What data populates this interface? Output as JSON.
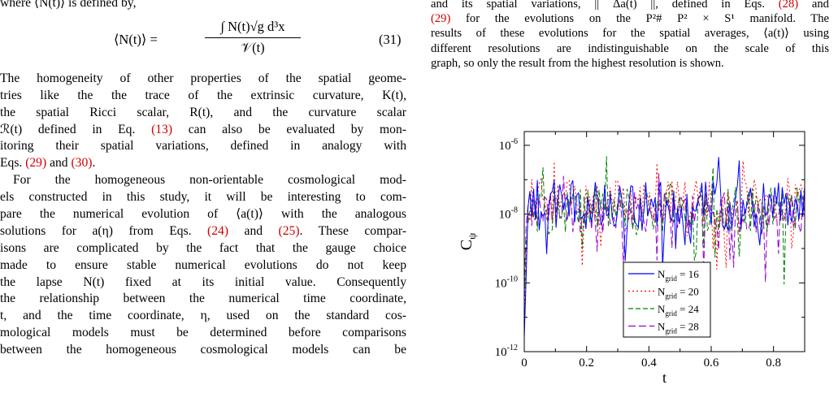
{
  "left": {
    "intro": "where ⟨N(t)⟩ is defined by,",
    "equation": {
      "lhs": "⟨N(t)⟩  =",
      "numerator": "∫ N(t)√g d³x",
      "denominator": "𝒱(t)",
      "number": "(31)"
    },
    "paragraph1_lines": [
      "The homogeneity of other properties of the spatial geome-",
      "tries like the the trace of the extrinsic curvature, K(t),",
      "the spatial Ricci scalar, R(t), and the curvature scalar",
      "can also be evaluated by mon-",
      "itoring their spatial variations, defined in analogy with"
    ],
    "p1_line3_pre": "ℛ(t) defined in Eq. ",
    "p1_ref13": "(13)",
    "p1_eqs_pre": "Eqs. ",
    "p1_ref29": "(29)",
    "p1_and": " and ",
    "p1_ref30": "(30)",
    "p1_end": ".",
    "paragraph2_lines": [
      "For the homogeneous non-orientable cosmological mod-",
      "els constructed in this study, it will be interesting to com-",
      "pare the numerical evolution of ⟨a(t)⟩ with the analogous"
    ],
    "p2_line4_pre": "solutions for a(η) from Eqs. ",
    "p2_ref24": "(24)",
    "p2_line4_and": " and ",
    "p2_ref25": "(25)",
    "p2_line4_post": ". These compar-",
    "paragraph2_rest": [
      "isons are complicated by the fact that the gauge choice",
      "made to ensure stable numerical evolutions do not keep",
      "the lapse N(t) fixed at its initial value. Consequently",
      "the relationship between the numerical time coordinate,",
      "t, and the time coordinate, η, used on the standard cos-",
      "mological models must be determined before comparisons",
      "between the homogeneous cosmological models can be"
    ]
  },
  "right": {
    "line1_pre": "and its spatial variations, || Δa(t) ||, defined in Eqs. ",
    "line1_ref28": "(28)",
    "line1_post": " and",
    "line2_ref29": "(29)",
    "line2_post": " for the evolutions on the P²# P² × S¹ manifold. The",
    "lines_rest": [
      "results of these evolutions for the spatial averages, ⟨a(t)⟩ using",
      "different resolutions are indistinguishable on the scale of this",
      "graph, so only the result from the highest resolution is shown."
    ]
  },
  "chart_data": {
    "type": "line",
    "xlabel": "t",
    "ylabel": "C",
    "ylabel_subscript": "ψ",
    "xlim": [
      0,
      0.9
    ],
    "ylim_log10": [
      -12,
      -5.6
    ],
    "x_ticks": [
      "0",
      "0.2",
      "0.4",
      "0.6",
      "0.8"
    ],
    "y_ticks": [
      {
        "base": "10",
        "exp": "-6",
        "value": -6
      },
      {
        "base": "10",
        "exp": "-8",
        "value": -8
      },
      {
        "base": "10",
        "exp": "-10",
        "value": -10
      },
      {
        "base": "10",
        "exp": "-12",
        "value": -12
      }
    ],
    "legend_position": "lower-right",
    "series": [
      {
        "name": "N",
        "sub": "grid",
        "suffix": " = 16",
        "color": "#0000ff",
        "dash": ""
      },
      {
        "name": "N",
        "sub": "grid",
        "suffix": " = 20",
        "color": "#ff0000",
        "dash": "2,3"
      },
      {
        "name": "N",
        "sub": "grid",
        "suffix": " = 24",
        "color": "#008000",
        "dash": "6,3"
      },
      {
        "name": "N",
        "sub": "grid",
        "suffix": " = 28",
        "color": "#9900cc",
        "dash": "9,4"
      }
    ]
  }
}
